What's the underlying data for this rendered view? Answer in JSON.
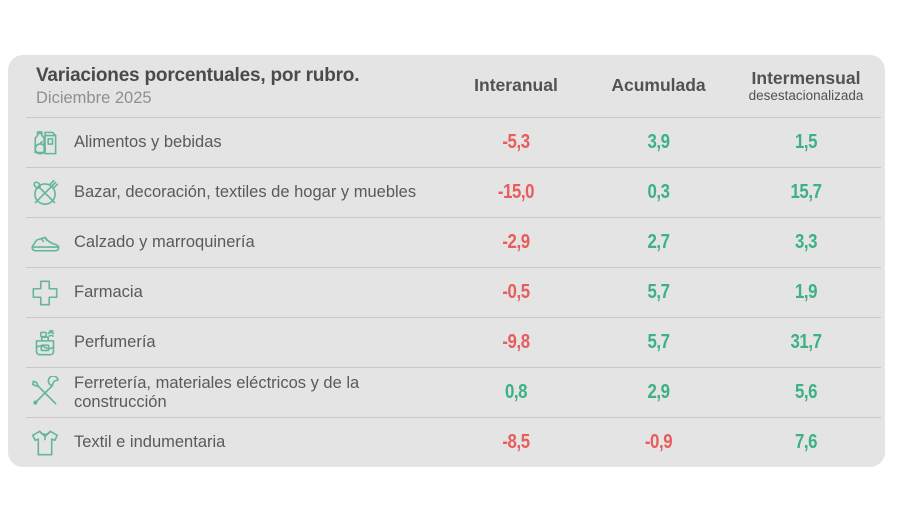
{
  "header": {
    "title": "Variaciones porcentuales, por rubro.",
    "subtitle": "Diciembre 2025",
    "columns": [
      {
        "label": "Interanual",
        "sublabel": ""
      },
      {
        "label": "Acumulada",
        "sublabel": ""
      },
      {
        "label": "Intermensual",
        "sublabel": "desestacionalizada"
      }
    ]
  },
  "rows": [
    {
      "icon": "groceries-icon",
      "label": "Alimentos y bebidas",
      "interanual": "-5,3",
      "acumulada": "3,9",
      "intermensual": "1,5"
    },
    {
      "icon": "tableware-icon",
      "label": "Bazar, decoración, textiles de hogar y muebles",
      "interanual": "-15,0",
      "acumulada": "0,3",
      "intermensual": "15,7"
    },
    {
      "icon": "shoe-icon",
      "label": "Calzado y marroquinería",
      "interanual": "-2,9",
      "acumulada": "2,7",
      "intermensual": "3,3"
    },
    {
      "icon": "pharmacy-cross-icon",
      "label": "Farmacia",
      "interanual": "-0,5",
      "acumulada": "5,7",
      "intermensual": "1,9"
    },
    {
      "icon": "perfume-icon",
      "label": "Perfumería",
      "interanual": "-9,8",
      "acumulada": "5,7",
      "intermensual": "31,7"
    },
    {
      "icon": "tools-icon",
      "label": "Ferretería, materiales eléctricos y de la construcción",
      "interanual": "0,8",
      "acumulada": "2,9",
      "intermensual": "5,6"
    },
    {
      "icon": "tshirt-icon",
      "label": "Textil e indumentaria",
      "interanual": "-8,5",
      "acumulada": "-0,9",
      "intermensual": "7,6"
    }
  ],
  "colors": {
    "card_bg": "#e4e4e4",
    "negative": "#e85c5c",
    "positive": "#3cb183",
    "icon": "#63b69a",
    "divider": "#c9c9c9",
    "title": "#4a4a4a",
    "subtitle": "#8f8f8f",
    "header_text": "#525252",
    "label_text": "#5a5a5a"
  },
  "chart_data": {
    "type": "table",
    "title": "Variaciones porcentuales, por rubro.",
    "subtitle": "Diciembre 2025",
    "columns": [
      "Interanual",
      "Acumulada",
      "Intermensual desestacionalizada"
    ],
    "rows": [
      {
        "category": "Alimentos y bebidas",
        "values": [
          -5.3,
          3.9,
          1.5
        ]
      },
      {
        "category": "Bazar, decoración, textiles de hogar y muebles",
        "values": [
          -15.0,
          0.3,
          15.7
        ]
      },
      {
        "category": "Calzado y marroquinería",
        "values": [
          -2.9,
          2.7,
          3.3
        ]
      },
      {
        "category": "Farmacia",
        "values": [
          -0.5,
          5.7,
          1.9
        ]
      },
      {
        "category": "Perfumería",
        "values": [
          -9.8,
          5.7,
          31.7
        ]
      },
      {
        "category": "Ferretería, materiales eléctricos y de la construcción",
        "values": [
          0.8,
          2.9,
          5.6
        ]
      },
      {
        "category": "Textil e indumentaria",
        "values": [
          -8.5,
          -0.9,
          7.6
        ]
      }
    ],
    "value_color_rule": "negative values red (#e85c5c), positive values green (#3cb183)",
    "decimal_separator": ","
  }
}
